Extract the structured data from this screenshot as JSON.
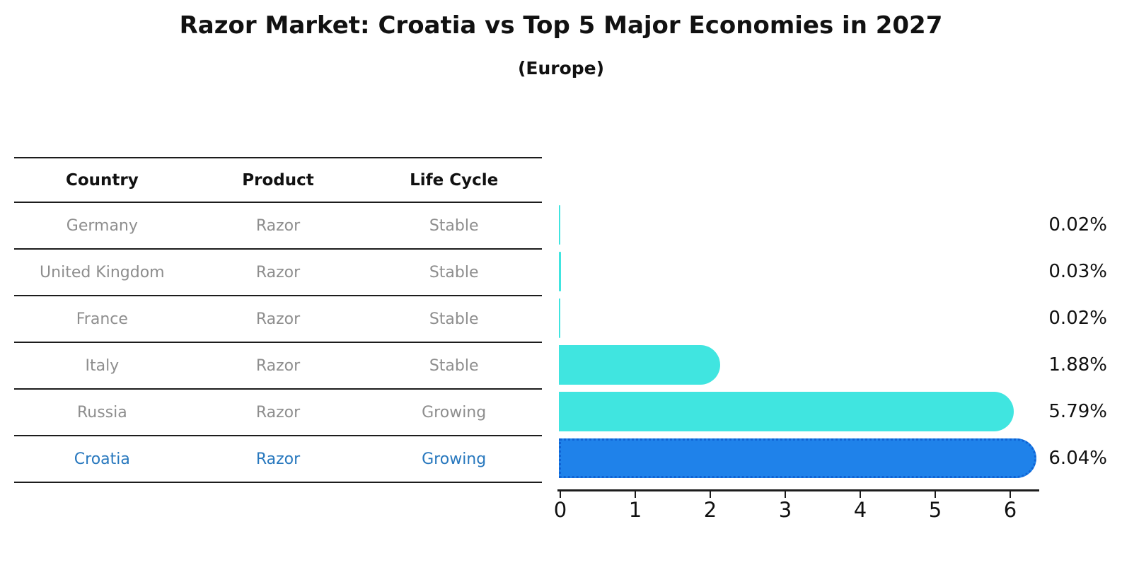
{
  "header": {
    "title": "Razor Market: Croatia vs Top 5 Major Economies in 2027",
    "subtitle": "(Europe)"
  },
  "table": {
    "columns": [
      "Country",
      "Product",
      "Life Cycle"
    ]
  },
  "chart_data": {
    "type": "bar",
    "orientation": "horizontal",
    "title": "Razor Market: Croatia vs Top 5 Major Economies in 2027",
    "subtitle": "(Europe)",
    "categories": [
      "Germany",
      "United Kingdom",
      "France",
      "Italy",
      "Russia",
      "Croatia"
    ],
    "values": [
      0.02,
      0.03,
      0.02,
      1.88,
      5.79,
      6.04
    ],
    "value_labels": [
      "0.02%",
      "0.03%",
      "0.02%",
      "1.88%",
      "5.79%",
      "6.04%"
    ],
    "x_ticks": [
      "0",
      "1",
      "2",
      "3",
      "4",
      "5",
      "6"
    ],
    "xlim": [
      0,
      6.4
    ],
    "grid": false,
    "legend": null,
    "rows": [
      {
        "country": "Germany",
        "product": "Razor",
        "life_cycle": "Stable",
        "value": 0.02,
        "value_label": "0.02%",
        "highlighted": false
      },
      {
        "country": "United Kingdom",
        "product": "Razor",
        "life_cycle": "Stable",
        "value": 0.03,
        "value_label": "0.03%",
        "highlighted": false
      },
      {
        "country": "France",
        "product": "Razor",
        "life_cycle": "Stable",
        "value": 0.02,
        "value_label": "0.02%",
        "highlighted": false
      },
      {
        "country": "Italy",
        "product": "Razor",
        "life_cycle": "Stable",
        "value": 1.88,
        "value_label": "1.88%",
        "highlighted": false
      },
      {
        "country": "Russia",
        "product": "Razor",
        "life_cycle": "Growing",
        "value": 5.79,
        "value_label": "5.79%",
        "highlighted": false
      },
      {
        "country": "Croatia",
        "product": "Razor",
        "life_cycle": "Growing",
        "value": 6.04,
        "value_label": "6.04%",
        "highlighted": true
      }
    ],
    "colors": {
      "bar_default": "#40E5E0",
      "bar_highlight": "#1F82EA",
      "bar_highlight_edge": "#0F63D4",
      "highlight_text": "#2878BE",
      "cell_text": "#8E8E8E",
      "header_text": "#111111",
      "axis": "#1C1C1C"
    }
  }
}
